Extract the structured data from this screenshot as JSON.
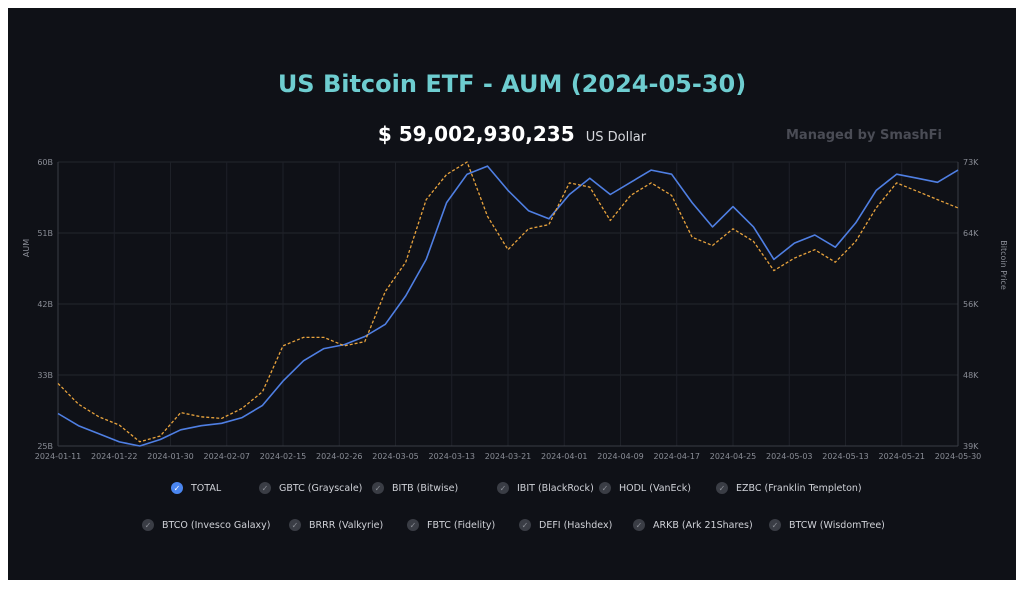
{
  "header": {
    "title": "US Bitcoin ETF - AUM (2024-05-30)",
    "aum_value": "$ 59,002,930,235",
    "aum_unit": "US Dollar",
    "managed_by": "Managed by SmashFi"
  },
  "chart_data": {
    "type": "line",
    "title": "US Bitcoin ETF - AUM (2024-05-30)",
    "ylabel": "AUM",
    "y2label": "Bitcoin Price",
    "ylim": [
      25,
      60
    ],
    "y2lim": [
      39000,
      73000
    ],
    "y_ticks": [
      "60B",
      "51B",
      "42B",
      "33B",
      "25B"
    ],
    "y2_ticks": [
      "73K",
      "64K",
      "56K",
      "48K",
      "39K"
    ],
    "x_ticks": [
      "2024-01-11",
      "2024-01-22",
      "2024-01-30",
      "2024-02-07",
      "2024-02-15",
      "2024-02-26",
      "2024-03-05",
      "2024-03-13",
      "2024-03-21",
      "2024-04-01",
      "2024-04-09",
      "2024-04-17",
      "2024-04-25",
      "2024-05-03",
      "2024-05-13",
      "2024-05-21",
      "2024-05-30"
    ],
    "grid": true,
    "legend_position": "bottom",
    "series": [
      {
        "name": "TOTAL",
        "axis": "left",
        "color": "#4f7fe3",
        "style": "solid",
        "values": [
          29.0,
          27.5,
          26.5,
          25.5,
          25.0,
          25.8,
          27.0,
          27.5,
          27.8,
          28.5,
          30.0,
          33.0,
          35.5,
          37.0,
          37.5,
          38.5,
          40.0,
          43.5,
          48.0,
          55.0,
          58.5,
          59.5,
          56.5,
          54.0,
          53.0,
          56.0,
          58.0,
          56.0,
          57.5,
          59.0,
          58.5,
          55.0,
          52.0,
          54.5,
          52.0,
          48.0,
          50.0,
          51.0,
          49.5,
          52.5,
          56.5,
          58.5,
          58.0,
          57.5,
          59.0
        ]
      },
      {
        "name": "Bitcoin Price",
        "axis": "right",
        "color": "#e8a33d",
        "style": "dashed",
        "values": [
          46500,
          44000,
          42500,
          41500,
          39500,
          40200,
          43000,
          42500,
          42300,
          43500,
          45500,
          51000,
          52000,
          52000,
          51000,
          51500,
          57500,
          61000,
          68500,
          71500,
          73000,
          66500,
          62500,
          65000,
          65500,
          70500,
          70000,
          66000,
          69000,
          70500,
          69000,
          64000,
          63000,
          65000,
          63500,
          60000,
          61500,
          62500,
          61000,
          63500,
          67500,
          70500,
          69500,
          68500,
          67500
        ]
      }
    ]
  },
  "legend": {
    "row1": [
      {
        "label": "TOTAL",
        "checked": true
      },
      {
        "label": "GBTC (Grayscale)",
        "checked": false
      },
      {
        "label": "BITB (Bitwise)",
        "checked": false
      },
      {
        "label": "IBIT (BlackRock)",
        "checked": false
      },
      {
        "label": "HODL (VanEck)",
        "checked": false
      },
      {
        "label": "EZBC (Franklin Templeton)",
        "checked": false
      }
    ],
    "row2": [
      {
        "label": "BTCO (Invesco Galaxy)",
        "checked": false
      },
      {
        "label": "BRRR (Valkyrie)",
        "checked": false
      },
      {
        "label": "FBTC (Fidelity)",
        "checked": false
      },
      {
        "label": "DEFI (Hashdex)",
        "checked": false
      },
      {
        "label": "ARKB (Ark 21Shares)",
        "checked": false
      },
      {
        "label": "BTCW (WisdomTree)",
        "checked": false
      }
    ]
  }
}
